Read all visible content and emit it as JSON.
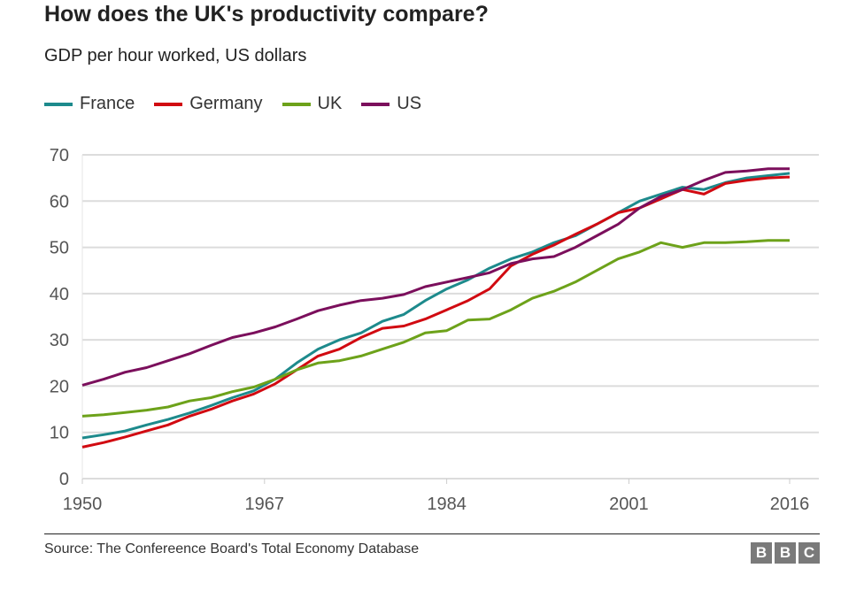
{
  "chart_data": {
    "type": "line",
    "title": "How does the UK's productivity compare?",
    "subtitle": "GDP per hour worked, US dollars",
    "source": "Source: The Confereence Board's Total Economy Database",
    "logo": "BBC",
    "ylim": [
      0,
      70
    ],
    "yticks": [
      "0",
      "10",
      "20",
      "30",
      "40",
      "50",
      "60",
      "70"
    ],
    "xlim": [
      1950,
      2016
    ],
    "xticks": [
      "1950",
      "1967",
      "1984",
      "2001",
      "2016"
    ],
    "grid": true,
    "legend": "top-left",
    "x": [
      1950,
      1952,
      1954,
      1956,
      1958,
      1960,
      1962,
      1964,
      1966,
      1968,
      1970,
      1972,
      1974,
      1976,
      1978,
      1980,
      1982,
      1984,
      1986,
      1988,
      1990,
      1992,
      1994,
      1996,
      1998,
      2000,
      2002,
      2004,
      2006,
      2008,
      2010,
      2012,
      2014,
      2016
    ],
    "series": [
      {
        "name": "France",
        "color": "#1d8a8c",
        "values": [
          8.8,
          9.5,
          10.3,
          11.6,
          12.8,
          14.2,
          15.8,
          17.5,
          19,
          21.5,
          25,
          28,
          30,
          31.5,
          34,
          35.5,
          38.5,
          41,
          43,
          45.5,
          47.5,
          49,
          51,
          52.5,
          55,
          57.5,
          60,
          61.5,
          63,
          62.5,
          64,
          65,
          65.5,
          66
        ]
      },
      {
        "name": "Germany",
        "color": "#d10a11",
        "values": [
          6.8,
          7.8,
          9,
          10.3,
          11.6,
          13.5,
          15,
          16.8,
          18.3,
          20.5,
          23.5,
          26.5,
          28,
          30.5,
          32.5,
          33,
          34.5,
          36.5,
          38.5,
          41,
          46,
          48.5,
          50.5,
          52.8,
          55,
          57.5,
          58.5,
          60.5,
          62.5,
          61.5,
          63.8,
          64.5,
          65,
          65.2
        ]
      },
      {
        "name": "UK",
        "color": "#6da21a",
        "values": [
          13.5,
          13.8,
          14.3,
          14.8,
          15.5,
          16.8,
          17.5,
          18.8,
          19.8,
          21.5,
          23.5,
          25,
          25.5,
          26.5,
          28,
          29.5,
          31.5,
          32,
          34.3,
          34.5,
          36.5,
          39,
          40.5,
          42.5,
          45,
          47.5,
          49,
          51,
          50,
          51,
          51,
          51.2,
          51.5,
          51.5
        ]
      },
      {
        "name": "US",
        "color": "#7b0f5c",
        "values": [
          20.2,
          21.5,
          23,
          24,
          25.5,
          27,
          28.8,
          30.5,
          31.5,
          32.8,
          34.5,
          36.3,
          37.5,
          38.5,
          39,
          39.8,
          41.5,
          42.5,
          43.5,
          44.5,
          46.5,
          47.5,
          48,
          50,
          52.5,
          55,
          58.5,
          61,
          62.5,
          64.5,
          66.2,
          66.5,
          67,
          67
        ]
      }
    ]
  }
}
